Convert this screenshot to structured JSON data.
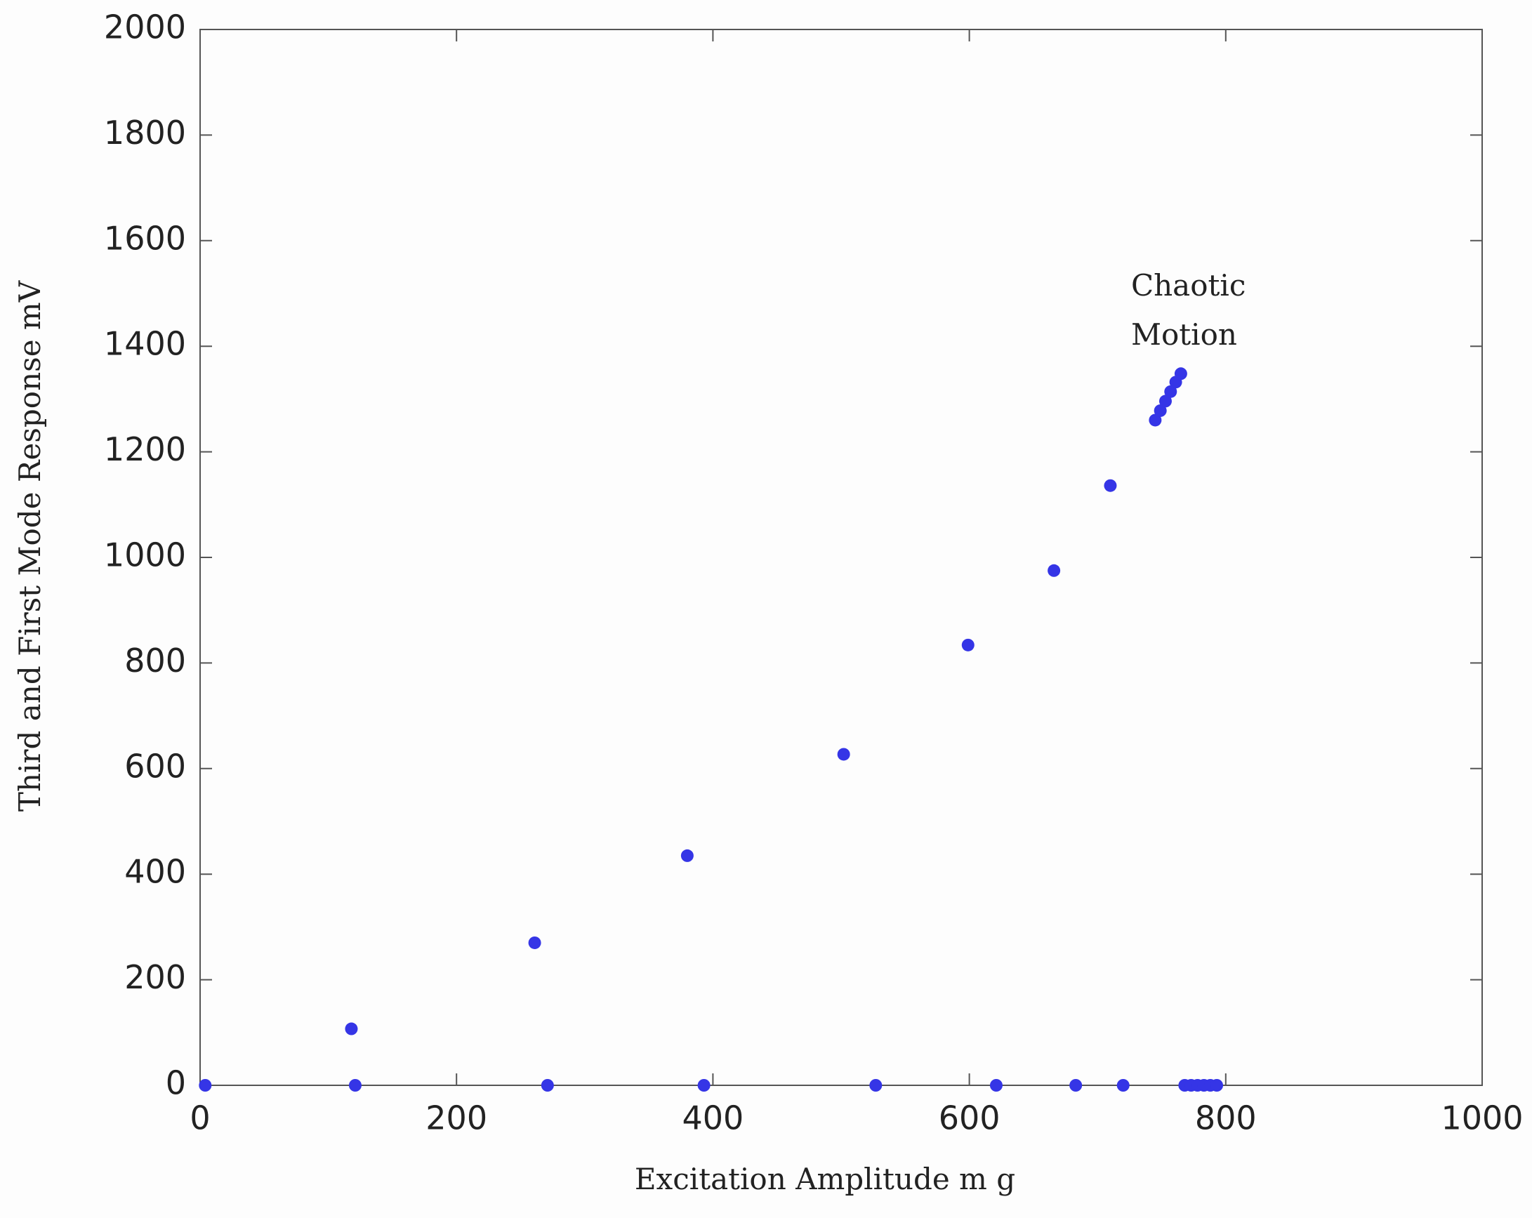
{
  "chart_data": {
    "type": "scatter",
    "x_label": "Excitation Amplitude m g",
    "y_label": "Third and First Mode Response mV",
    "annotation": [
      "Chaotic",
      "Motion"
    ],
    "color": "#3535e6",
    "grid": false,
    "xlim": [
      0,
      1000
    ],
    "xticks": [
      0,
      200,
      400,
      600,
      800,
      1000
    ],
    "ylim": [
      0,
      2000
    ],
    "yticks": [
      0,
      200,
      400,
      600,
      800,
      1000,
      1200,
      1400,
      1600,
      1800,
      2000
    ],
    "x": [
      118,
      261,
      380,
      502,
      599,
      666,
      710,
      745,
      749,
      753,
      757,
      761,
      765,
      4,
      121,
      271,
      393,
      527,
      621,
      683,
      720,
      768,
      773,
      778,
      783,
      788,
      793
    ],
    "y": [
      107,
      270,
      435,
      627,
      834,
      975,
      1136,
      1260,
      1278,
      1296,
      1314,
      1332,
      1348,
      0,
      0,
      0,
      0,
      0,
      0,
      0,
      0,
      0,
      0,
      0,
      0,
      0,
      0
    ]
  }
}
